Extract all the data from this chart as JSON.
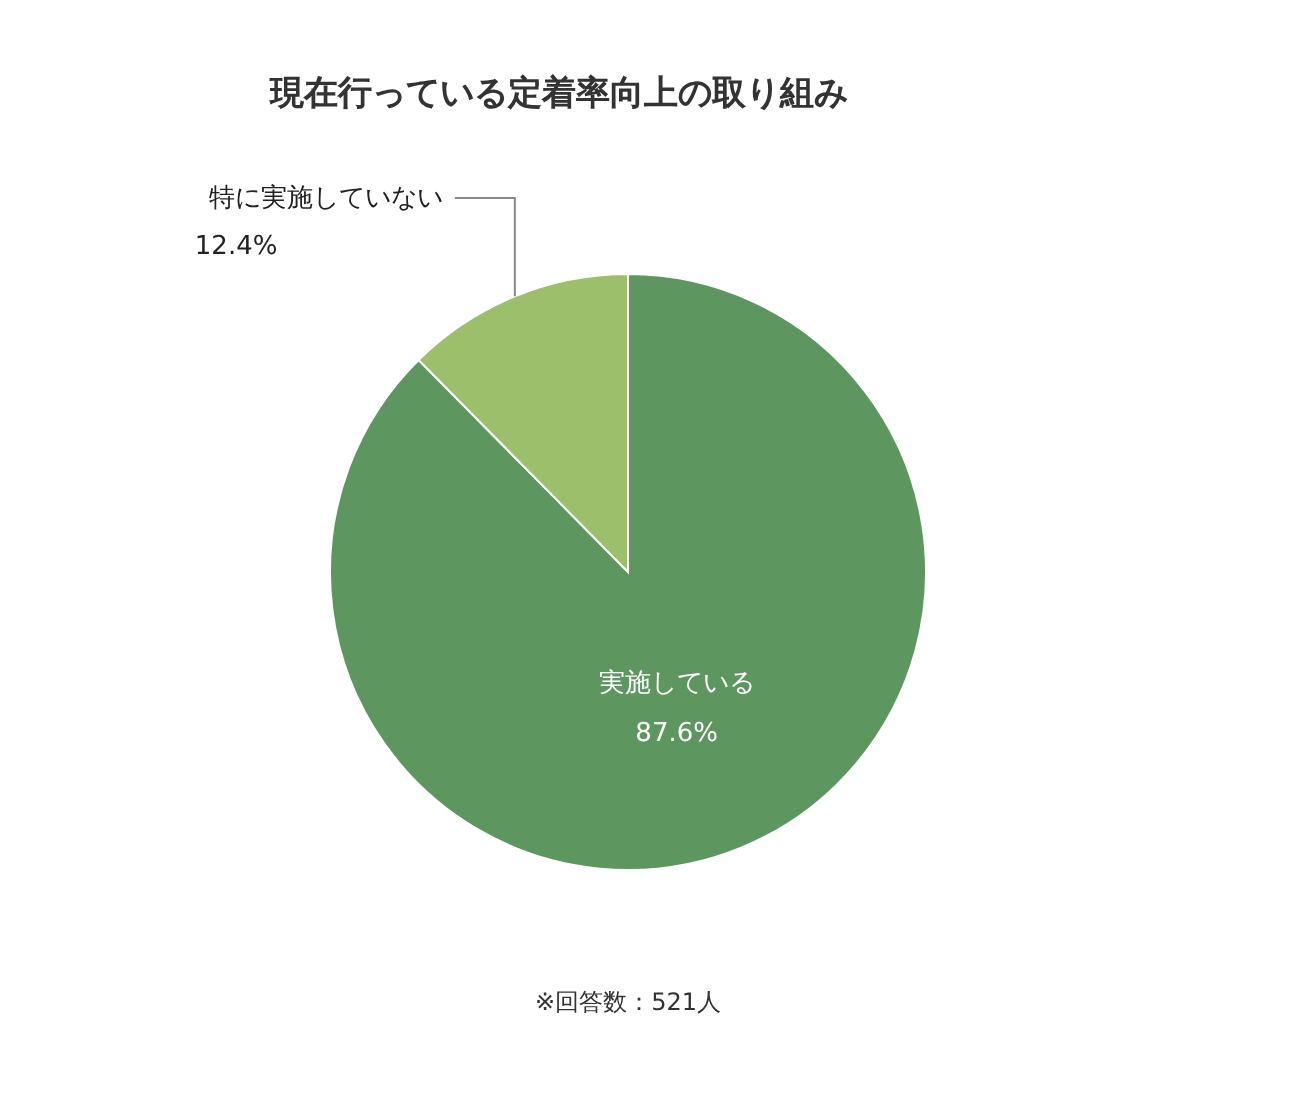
{
  "chart_data": {
    "type": "pie",
    "title": "現在行っている定着率向上の取り組み",
    "categories": [
      "実施している",
      "特に実施していない"
    ],
    "values": [
      87.6,
      12.4
    ],
    "colors": [
      "#5e9660",
      "#9bbf6a"
    ],
    "value_labels": [
      "87.6%",
      "12.4%"
    ],
    "annotations": [
      "※回答数：521人"
    ]
  }
}
